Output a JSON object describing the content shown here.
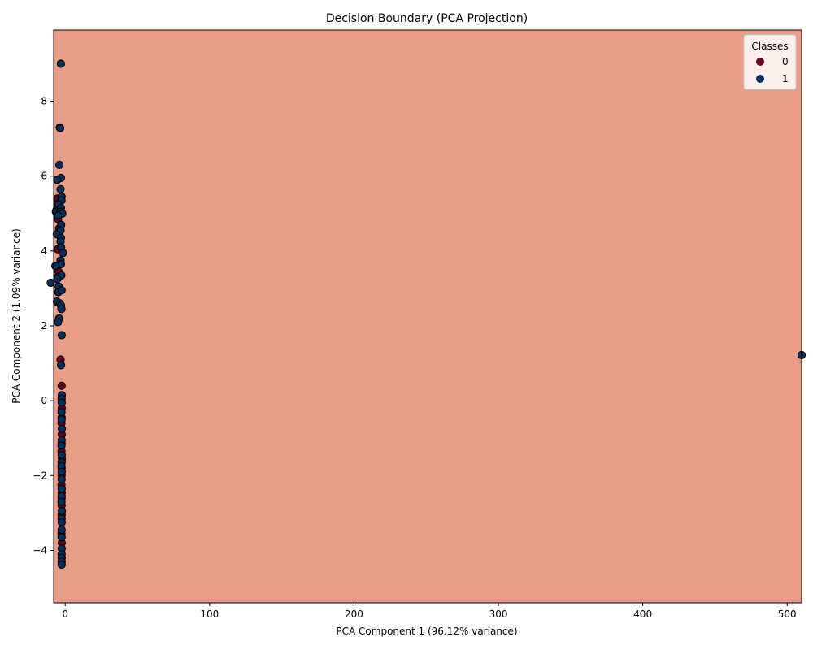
{
  "chart_data": {
    "type": "scatter",
    "title": "Decision Boundary (PCA Projection)",
    "xlabel": "PCA Component 1 (96.12% variance)",
    "ylabel": "PCA Component 2 (1.09% variance)",
    "xlim": [
      -8,
      510
    ],
    "ylim": [
      -5.4,
      9.9
    ],
    "xticks": [
      0,
      100,
      200,
      300,
      400,
      500
    ],
    "yticks": [
      -4,
      -2,
      0,
      2,
      4,
      6,
      8
    ],
    "background_color": "#ea9d86",
    "grid": false,
    "legend": {
      "title": "Classes",
      "placement": "top-right",
      "entries": [
        {
          "label": "0",
          "color": "#67001f"
        },
        {
          "label": "1",
          "color": "#053061"
        }
      ]
    },
    "series": [
      {
        "name": "0",
        "color": "#67001f",
        "points": [
          [
            -5.5,
            5.4
          ],
          [
            -4.8,
            5.0
          ],
          [
            -5.0,
            4.85
          ],
          [
            -4.2,
            4.6
          ],
          [
            -5.2,
            4.05
          ],
          [
            -4.6,
            3.45
          ],
          [
            -5.3,
            3.3
          ],
          [
            -3.2,
            1.1
          ],
          [
            -2.5,
            0.4
          ],
          [
            -2.4,
            -0.2
          ],
          [
            -2.5,
            -0.45
          ],
          [
            -2.6,
            -0.6
          ],
          [
            -2.4,
            -0.9
          ],
          [
            -2.5,
            -1.15
          ],
          [
            -2.6,
            -1.35
          ],
          [
            -2.3,
            -1.55
          ],
          [
            -2.5,
            -1.8
          ],
          [
            -2.5,
            -2.0
          ],
          [
            -2.6,
            -2.25
          ],
          [
            -2.4,
            -2.45
          ],
          [
            -2.5,
            -2.6
          ],
          [
            -2.5,
            -2.8
          ],
          [
            -2.5,
            -3.05
          ],
          [
            -2.6,
            -3.55
          ],
          [
            -2.4,
            -3.8
          ]
        ]
      },
      {
        "name": "1",
        "color": "#053061",
        "points": [
          [
            -3.0,
            9.0
          ],
          [
            -3.8,
            7.3
          ],
          [
            -3.5,
            7.28
          ],
          [
            -4.0,
            6.3
          ],
          [
            -3.0,
            5.95
          ],
          [
            -5.6,
            5.9
          ],
          [
            -3.2,
            5.65
          ],
          [
            -2.5,
            5.45
          ],
          [
            -2.6,
            5.35
          ],
          [
            -4.8,
            5.25
          ],
          [
            -6.0,
            5.1
          ],
          [
            -3.0,
            5.15
          ],
          [
            -6.5,
            5.05
          ],
          [
            -3.5,
            5.05
          ],
          [
            -2.0,
            5.0
          ],
          [
            -5.0,
            4.95
          ],
          [
            -2.8,
            4.7
          ],
          [
            -3.2,
            4.55
          ],
          [
            -5.8,
            4.45
          ],
          [
            -3.0,
            4.35
          ],
          [
            -3.2,
            4.25
          ],
          [
            -2.8,
            4.1
          ],
          [
            -1.5,
            3.95
          ],
          [
            -3.2,
            3.75
          ],
          [
            -3.0,
            3.65
          ],
          [
            -6.8,
            3.6
          ],
          [
            -2.7,
            3.35
          ],
          [
            -5.5,
            3.25
          ],
          [
            -10.0,
            3.15
          ],
          [
            -4.5,
            3.05
          ],
          [
            -4.8,
            2.9
          ],
          [
            -2.5,
            2.95
          ],
          [
            -5.8,
            2.65
          ],
          [
            -3.8,
            2.6
          ],
          [
            -3.0,
            2.55
          ],
          [
            -2.6,
            2.45
          ],
          [
            -4.2,
            2.2
          ],
          [
            -5.0,
            2.1
          ],
          [
            -2.4,
            1.75
          ],
          [
            -2.9,
            0.95
          ],
          [
            -2.3,
            0.15
          ],
          [
            -2.5,
            0.05
          ],
          [
            -2.4,
            -0.05
          ],
          [
            -2.6,
            -0.3
          ],
          [
            -2.5,
            -0.5
          ],
          [
            -2.3,
            -0.75
          ],
          [
            -2.4,
            -1.05
          ],
          [
            -2.6,
            -1.2
          ],
          [
            -2.4,
            -1.45
          ],
          [
            -2.5,
            -1.65
          ],
          [
            -2.6,
            -1.75
          ],
          [
            -2.4,
            -1.9
          ],
          [
            -2.5,
            -2.1
          ],
          [
            -2.4,
            -2.35
          ],
          [
            -2.5,
            -2.55
          ],
          [
            -2.6,
            -2.7
          ],
          [
            -2.3,
            -2.95
          ],
          [
            -2.5,
            -3.15
          ],
          [
            -2.4,
            -3.25
          ],
          [
            -2.5,
            -3.45
          ],
          [
            -2.5,
            -3.65
          ],
          [
            -2.4,
            -3.95
          ],
          [
            -2.5,
            -4.1
          ],
          [
            -2.4,
            -4.2
          ],
          [
            -2.5,
            -4.3
          ],
          [
            -2.4,
            -4.38
          ],
          [
            510,
            1.22
          ]
        ]
      }
    ]
  }
}
